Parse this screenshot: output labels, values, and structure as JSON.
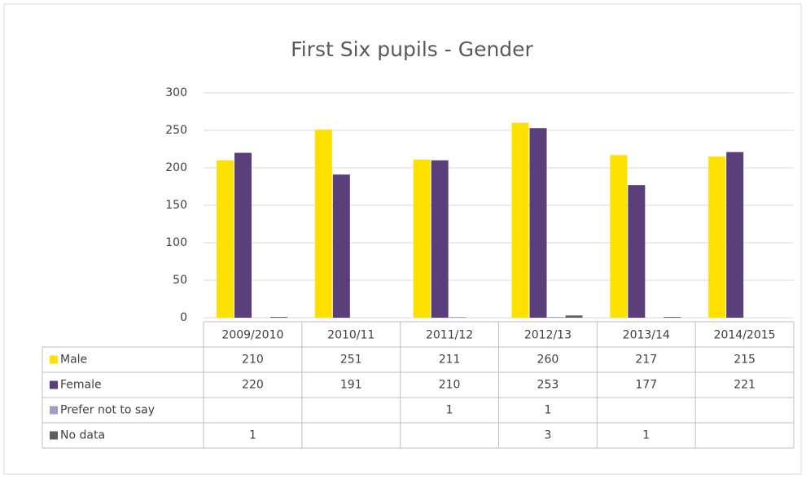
{
  "chart_data": {
    "type": "bar",
    "title": "First Six pupils - Gender",
    "categories": [
      "2009/2010",
      "2010/11",
      "2011/12",
      "2012/13",
      "2013/14",
      "2014/2015"
    ],
    "series": [
      {
        "name": "Male",
        "color": "#ffe100",
        "values": [
          210,
          251,
          211,
          260,
          217,
          215
        ]
      },
      {
        "name": "Female",
        "color": "#5b3f7a",
        "values": [
          220,
          191,
          210,
          253,
          177,
          221
        ]
      },
      {
        "name": "Prefer not to say",
        "color": "#a49bc9",
        "values": [
          null,
          null,
          1,
          1,
          null,
          null
        ]
      },
      {
        "name": "No data",
        "color": "#5f5f5f",
        "values": [
          1,
          null,
          null,
          3,
          1,
          null
        ]
      }
    ],
    "ylim": [
      0,
      300
    ],
    "yticks": [
      0,
      50,
      100,
      150,
      200,
      250,
      300
    ],
    "grid": true
  }
}
